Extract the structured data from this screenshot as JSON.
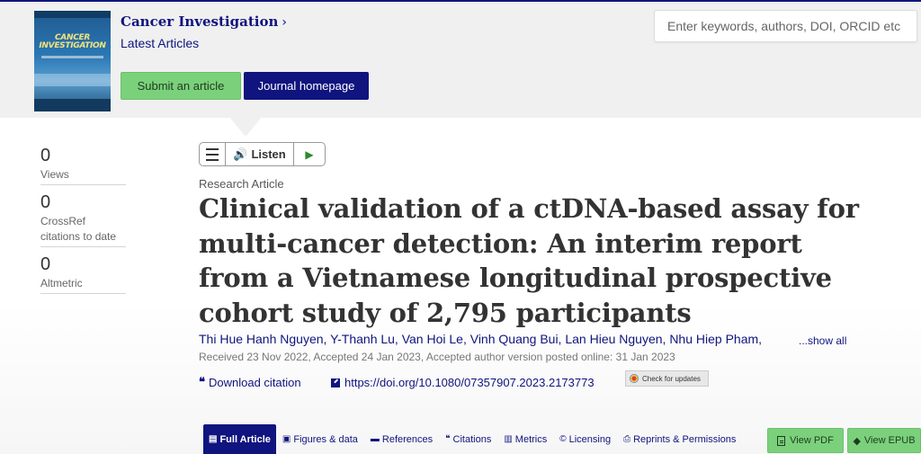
{
  "header": {
    "journal_title": "Cancer Investigation",
    "chevron": "›",
    "latest_articles": "Latest Articles",
    "cover_title": "CANCER INVESTIGATION",
    "submit_label": "Submit an article",
    "homepage_label": "Journal homepage",
    "search_placeholder": "Enter keywords, authors, DOI, ORCID etc"
  },
  "metrics": [
    {
      "value": "0",
      "label": "Views"
    },
    {
      "value": "0",
      "label": "CrossRef citations to date"
    },
    {
      "value": "0",
      "label": "Altmetric"
    }
  ],
  "listen": {
    "label": "Listen",
    "speaker_icon": "🔊",
    "play_icon": "▶"
  },
  "article": {
    "type": "Research Article",
    "title": "Clinical validation of a ctDNA-based assay for multi-cancer detection: An interim report from a Vietnamese longitudinal prospective cohort study of 2,795 participants",
    "authors": [
      "Thi Hue Hanh Nguyen,",
      "Y-Thanh Lu,",
      "Van Hoi Le,",
      "Vinh Quang Bui,",
      "Lan Hieu Nguyen,",
      "Nhu Hiep Pham,"
    ],
    "show_all": "...show all",
    "dates": "Received 23 Nov 2022, Accepted 24 Jan 2023, Accepted author version posted online: 31 Jan 2023",
    "download_citation": "Download citation",
    "doi": "https://doi.org/10.1080/07357907.2023.2173773",
    "check_updates": "Check for updates"
  },
  "tabs": [
    {
      "label": "Full Article",
      "icon": "▤",
      "active": true
    },
    {
      "label": "Figures & data",
      "icon": "▣",
      "active": false
    },
    {
      "label": "References",
      "icon": "▬",
      "active": false
    },
    {
      "label": "Citations",
      "icon": "❝",
      "active": false
    },
    {
      "label": "Metrics",
      "icon": "▥",
      "active": false
    },
    {
      "label": "Licensing",
      "icon": "©",
      "active": false
    },
    {
      "label": "Reprints & Permissions",
      "icon": "⎙",
      "active": false
    }
  ],
  "actions": {
    "view_pdf": "View PDF",
    "view_epub": "View EPUB",
    "epub_icon": "◆"
  }
}
